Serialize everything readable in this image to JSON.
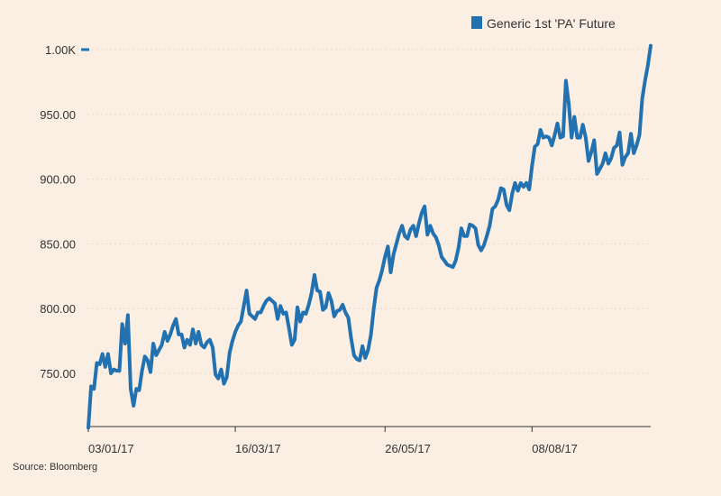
{
  "chart_data": {
    "type": "line",
    "title": "",
    "xlabel": "",
    "ylabel": "",
    "source": "Source: Bloomberg",
    "legend": {
      "position": "top-right"
    },
    "grid": {
      "y": true,
      "x": false
    },
    "ylim": [
      705,
      1005
    ],
    "y_ticks": [
      {
        "value": 1000,
        "label": "1.00K"
      },
      {
        "value": 950,
        "label": "950.00"
      },
      {
        "value": 900,
        "label": "900.00"
      },
      {
        "value": 850,
        "label": "850.00"
      },
      {
        "value": 800,
        "label": "800.00"
      },
      {
        "value": 750,
        "label": "750.00"
      }
    ],
    "x_ticks": [
      {
        "index": 0,
        "label": "03/01/17"
      },
      {
        "index": 52,
        "label": "16/03/17"
      },
      {
        "index": 105,
        "label": "26/05/17"
      },
      {
        "index": 157,
        "label": "08/08/17"
      }
    ],
    "colors": {
      "line": "#2271b1",
      "background": "#fbeee3",
      "axis": "#333333",
      "grid": "#e8dcd2"
    },
    "series": [
      {
        "name": "Generic 1st 'PA' Future",
        "values": [
          708,
          740,
          738,
          758,
          757,
          765,
          755,
          765,
          750,
          753,
          752,
          752,
          788,
          773,
          795,
          738,
          725,
          738,
          737,
          752,
          763,
          760,
          751,
          773,
          764,
          768,
          772,
          782,
          775,
          780,
          787,
          792,
          780,
          780,
          770,
          776,
          772,
          784,
          773,
          782,
          772,
          770,
          774,
          776,
          770,
          749,
          746,
          753,
          742,
          747,
          766,
          775,
          782,
          787,
          790,
          802,
          814,
          796,
          794,
          792,
          797,
          797,
          802,
          806,
          808,
          806,
          804,
          792,
          802,
          796,
          797,
          785,
          772,
          776,
          801,
          790,
          797,
          796,
          803,
          812,
          826,
          814,
          813,
          799,
          801,
          812,
          806,
          794,
          798,
          799,
          803,
          797,
          793,
          777,
          764,
          761,
          760,
          771,
          762,
          768,
          780,
          800,
          816,
          822,
          830,
          840,
          848,
          828,
          842,
          850,
          858,
          864,
          856,
          854,
          861,
          864,
          856,
          866,
          874,
          879,
          857,
          864,
          858,
          855,
          849,
          840,
          837,
          834,
          833,
          832,
          837,
          847,
          862,
          856,
          856,
          865,
          864,
          862,
          849,
          845,
          849,
          856,
          864,
          877,
          879,
          884,
          893,
          892,
          880,
          876,
          889,
          897,
          891,
          897,
          894,
          897,
          892,
          910,
          925,
          927,
          938,
          932,
          933,
          932,
          926,
          934,
          943,
          932,
          933,
          976,
          958,
          932,
          948,
          932,
          932,
          942,
          932,
          914,
          921,
          930,
          904,
          908,
          912,
          920,
          912,
          916,
          924,
          926,
          936,
          911,
          917,
          920,
          935,
          920,
          926,
          934,
          962,
          976,
          988,
          1003
        ]
      }
    ]
  }
}
